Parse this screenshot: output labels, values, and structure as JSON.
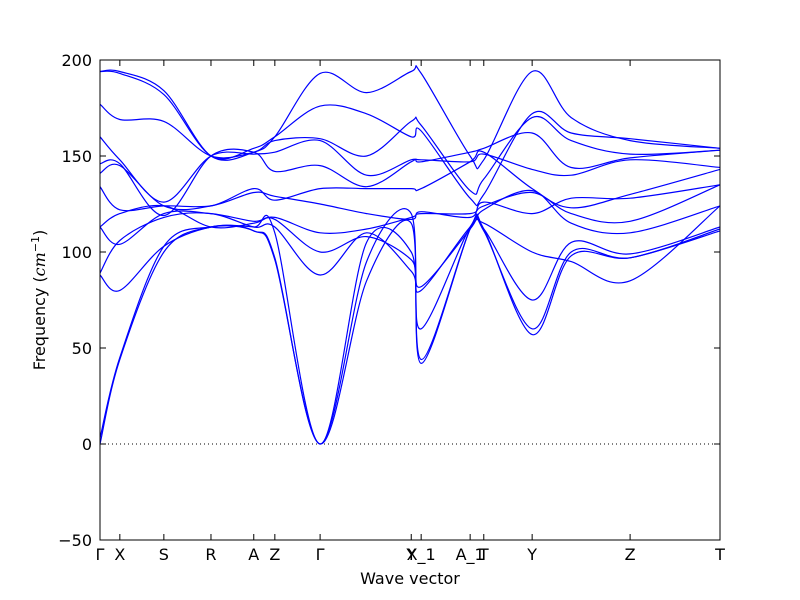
{
  "chart_data": {
    "type": "line",
    "title": "",
    "xlabel": "Wave vector",
    "ylabel_main": "Frequency (",
    "ylabel_unit": "cm",
    "ylabel_exp": "−1",
    "ylabel_close": ")",
    "ylim": [
      -50,
      200
    ],
    "yticks": [
      -50,
      0,
      50,
      100,
      150,
      200
    ],
    "xlim": [
      0,
      1
    ],
    "xticks": [
      {
        "label": "Γ",
        "x": 0.0
      },
      {
        "label": "X",
        "x": 0.032
      },
      {
        "label": "S",
        "x": 0.103
      },
      {
        "label": "R",
        "x": 0.179
      },
      {
        "label": "A",
        "x": 0.248
      },
      {
        "label": "Z",
        "x": 0.282
      },
      {
        "label": "Γ",
        "x": 0.355
      },
      {
        "label": "Y",
        "x": 0.502
      },
      {
        "label": "X_1",
        "x": 0.518
      },
      {
        "label": "A_1",
        "x": 0.597
      },
      {
        "label": "T",
        "x": 0.619
      },
      {
        "label": "Y",
        "x": 0.697
      },
      {
        "label": "Z",
        "x": 0.855
      },
      {
        "label": "T",
        "x": 1.0
      }
    ],
    "zero_line": {
      "y": 0,
      "style": "dotted"
    },
    "line_color": "#0000ff",
    "x": [
      0.0,
      0.032,
      0.103,
      0.179,
      0.248,
      0.282,
      0.355,
      0.43,
      0.502,
      0.518,
      0.597,
      0.619,
      0.697,
      0.76,
      0.855,
      1.0
    ],
    "series": [
      {
        "values": [
          0,
          44,
          100,
          113,
          111,
          96,
          0,
          85,
          115,
          42,
          112,
          112,
          57,
          98,
          97,
          111
        ]
      },
      {
        "values": [
          3,
          45,
          103,
          113,
          111,
          97,
          0,
          95,
          120,
          44,
          112,
          111,
          60,
          100,
          97,
          112
        ]
      },
      {
        "values": [
          88,
          80,
          103,
          113,
          113,
          110,
          0,
          105,
          100,
          60,
          113,
          112,
          75,
          105,
          99,
          113
        ]
      },
      {
        "values": [
          89,
          106,
          118,
          120,
          113,
          113,
          88,
          110,
          90,
          80,
          113,
          115,
          100,
          95,
          85,
          124
        ]
      },
      {
        "values": [
          113,
          104,
          120,
          120,
          116,
          117,
          100,
          108,
          96,
          82,
          112,
          122,
          132,
          115,
          110,
          124
        ]
      },
      {
        "values": [
          113,
          120,
          124,
          113,
          115,
          118,
          110,
          112,
          118,
          120,
          120,
          124,
          131,
          120,
          116,
          135
        ]
      },
      {
        "values": [
          134,
          122,
          124,
          124,
          131,
          129,
          125,
          120,
          117,
          121,
          118,
          126,
          120,
          128,
          128,
          135
        ]
      },
      {
        "values": [
          141,
          145,
          124,
          124,
          133,
          127,
          133,
          133,
          133,
          133,
          147,
          152,
          133,
          123,
          130,
          143
        ]
      },
      {
        "values": [
          146,
          146,
          119,
          150,
          152,
          142,
          145,
          134,
          147,
          148,
          147,
          151,
          143,
          140,
          148,
          144
        ]
      },
      {
        "values": [
          160,
          148,
          126,
          150,
          151,
          152,
          158,
          140,
          148,
          147,
          152,
          154,
          162,
          144,
          149,
          153
        ]
      },
      {
        "values": [
          177,
          169,
          168,
          150,
          152,
          158,
          159,
          150,
          168,
          166,
          132,
          138,
          170,
          158,
          151,
          153
        ]
      },
      {
        "values": [
          194,
          193,
          182,
          150,
          154,
          160,
          176,
          172,
          160,
          163,
          128,
          130,
          172,
          162,
          159,
          154
        ]
      },
      {
        "values": [
          194,
          194,
          184,
          150,
          152,
          160,
          193,
          183,
          194,
          193,
          150,
          148,
          194,
          170,
          158,
          154
        ]
      }
    ]
  }
}
